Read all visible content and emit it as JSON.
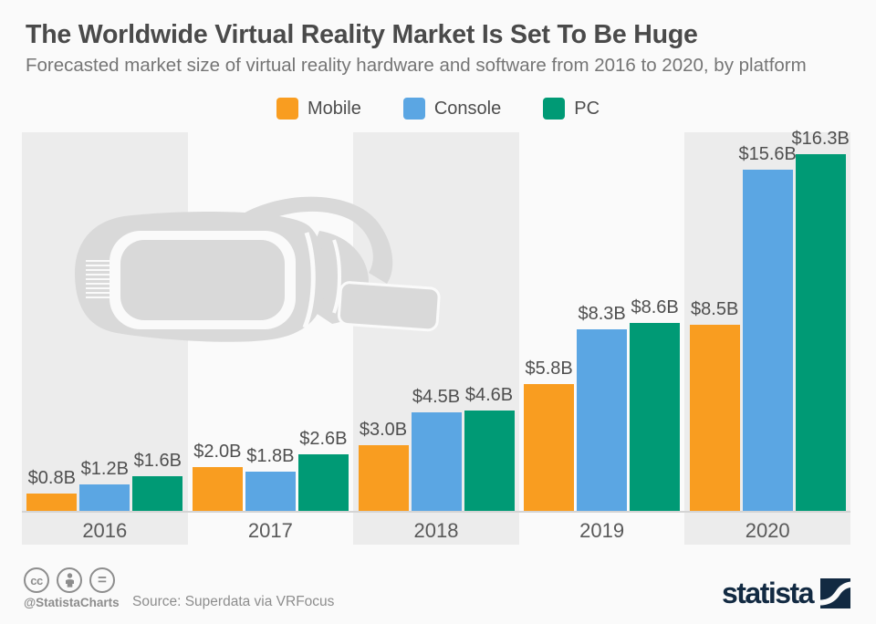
{
  "header": {
    "title": "The Worldwide Virtual Reality Market Is Set To Be Huge",
    "subtitle": "Forecasted market size of virtual reality hardware and software from 2016 to 2020, by platform"
  },
  "legend": [
    {
      "label": "Mobile",
      "color": "#f99d20"
    },
    {
      "label": "Console",
      "color": "#5ba6e3"
    },
    {
      "label": "PC",
      "color": "#009a75"
    }
  ],
  "chart_data": {
    "type": "bar",
    "title": "The Worldwide Virtual Reality Market Is Set To Be Huge",
    "subtitle": "Forecasted market size of virtual reality hardware and software from 2016 to 2020, by platform",
    "categories": [
      "2016",
      "2017",
      "2018",
      "2019",
      "2020"
    ],
    "series": [
      {
        "name": "Mobile",
        "color": "#f99d20",
        "values": [
          0.8,
          2.0,
          3.0,
          5.8,
          8.5
        ],
        "labels": [
          "$0.8B",
          "$2.0B",
          "$3.0B",
          "$5.8B",
          "$8.5B"
        ]
      },
      {
        "name": "Console",
        "color": "#5ba6e3",
        "values": [
          1.2,
          1.8,
          4.5,
          8.3,
          15.6
        ],
        "labels": [
          "$1.2B",
          "$1.8B",
          "$4.5B",
          "$8.3B",
          "$15.6B"
        ]
      },
      {
        "name": "PC",
        "color": "#009a75",
        "values": [
          1.6,
          2.6,
          4.6,
          8.6,
          16.3
        ],
        "labels": [
          "$1.6B",
          "$2.6B",
          "$4.6B",
          "$8.6B",
          "$16.3B"
        ]
      }
    ],
    "ylim": [
      0,
      17
    ],
    "grid": false,
    "legend_position": "top",
    "band_color": "#ececec",
    "value_prefix": "$",
    "value_suffix": "B"
  },
  "footer": {
    "license_icons": [
      "cc-icon",
      "attribution-person-icon",
      "no-derivatives-icon"
    ],
    "handle": "@StatistaCharts",
    "source": "Source: Superdata via VRFocus",
    "brand": "statista",
    "brand_color": "#122a42"
  }
}
